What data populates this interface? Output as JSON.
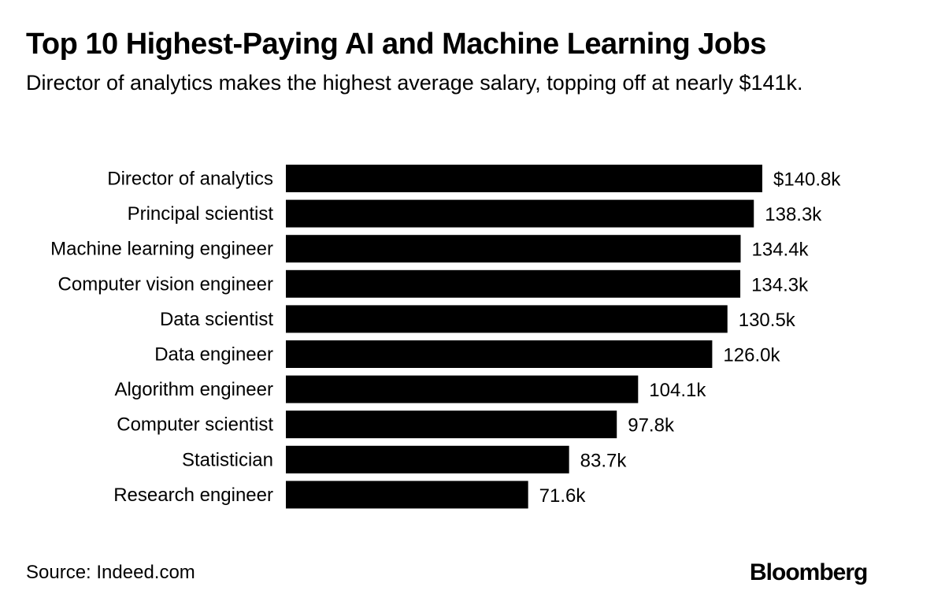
{
  "header": {
    "title": "Top 10 Highest-Paying AI and Machine Learning Jobs",
    "subtitle": "Director of analytics makes the highest average salary, topping off at nearly $141k."
  },
  "footer": {
    "source": "Source: Indeed.com",
    "brand": "Bloomberg"
  },
  "colors": {
    "bar": "#000000",
    "background": "#ffffff",
    "text": "#000000"
  },
  "chart_data": {
    "type": "bar",
    "orientation": "horizontal",
    "categories": [
      "Director of analytics",
      "Principal scientist",
      "Machine learning engineer",
      "Computer vision engineer",
      "Data scientist",
      "Data engineer",
      "Algorithm engineer",
      "Computer scientist",
      "Statistician",
      "Research engineer"
    ],
    "values": [
      140.8,
      138.3,
      134.4,
      134.3,
      130.5,
      126.0,
      104.1,
      97.8,
      83.7,
      71.6
    ],
    "value_labels": [
      "$140.8k",
      "138.3k",
      "134.4k",
      "134.3k",
      "130.5k",
      "126.0k",
      "104.1k",
      "97.8k",
      "83.7k",
      "71.6k"
    ],
    "title": "Top 10 Highest-Paying AI and Machine Learning Jobs",
    "xlabel": "",
    "ylabel": "",
    "xlim": [
      0,
      140.8
    ],
    "grid": false,
    "legend": "none"
  }
}
